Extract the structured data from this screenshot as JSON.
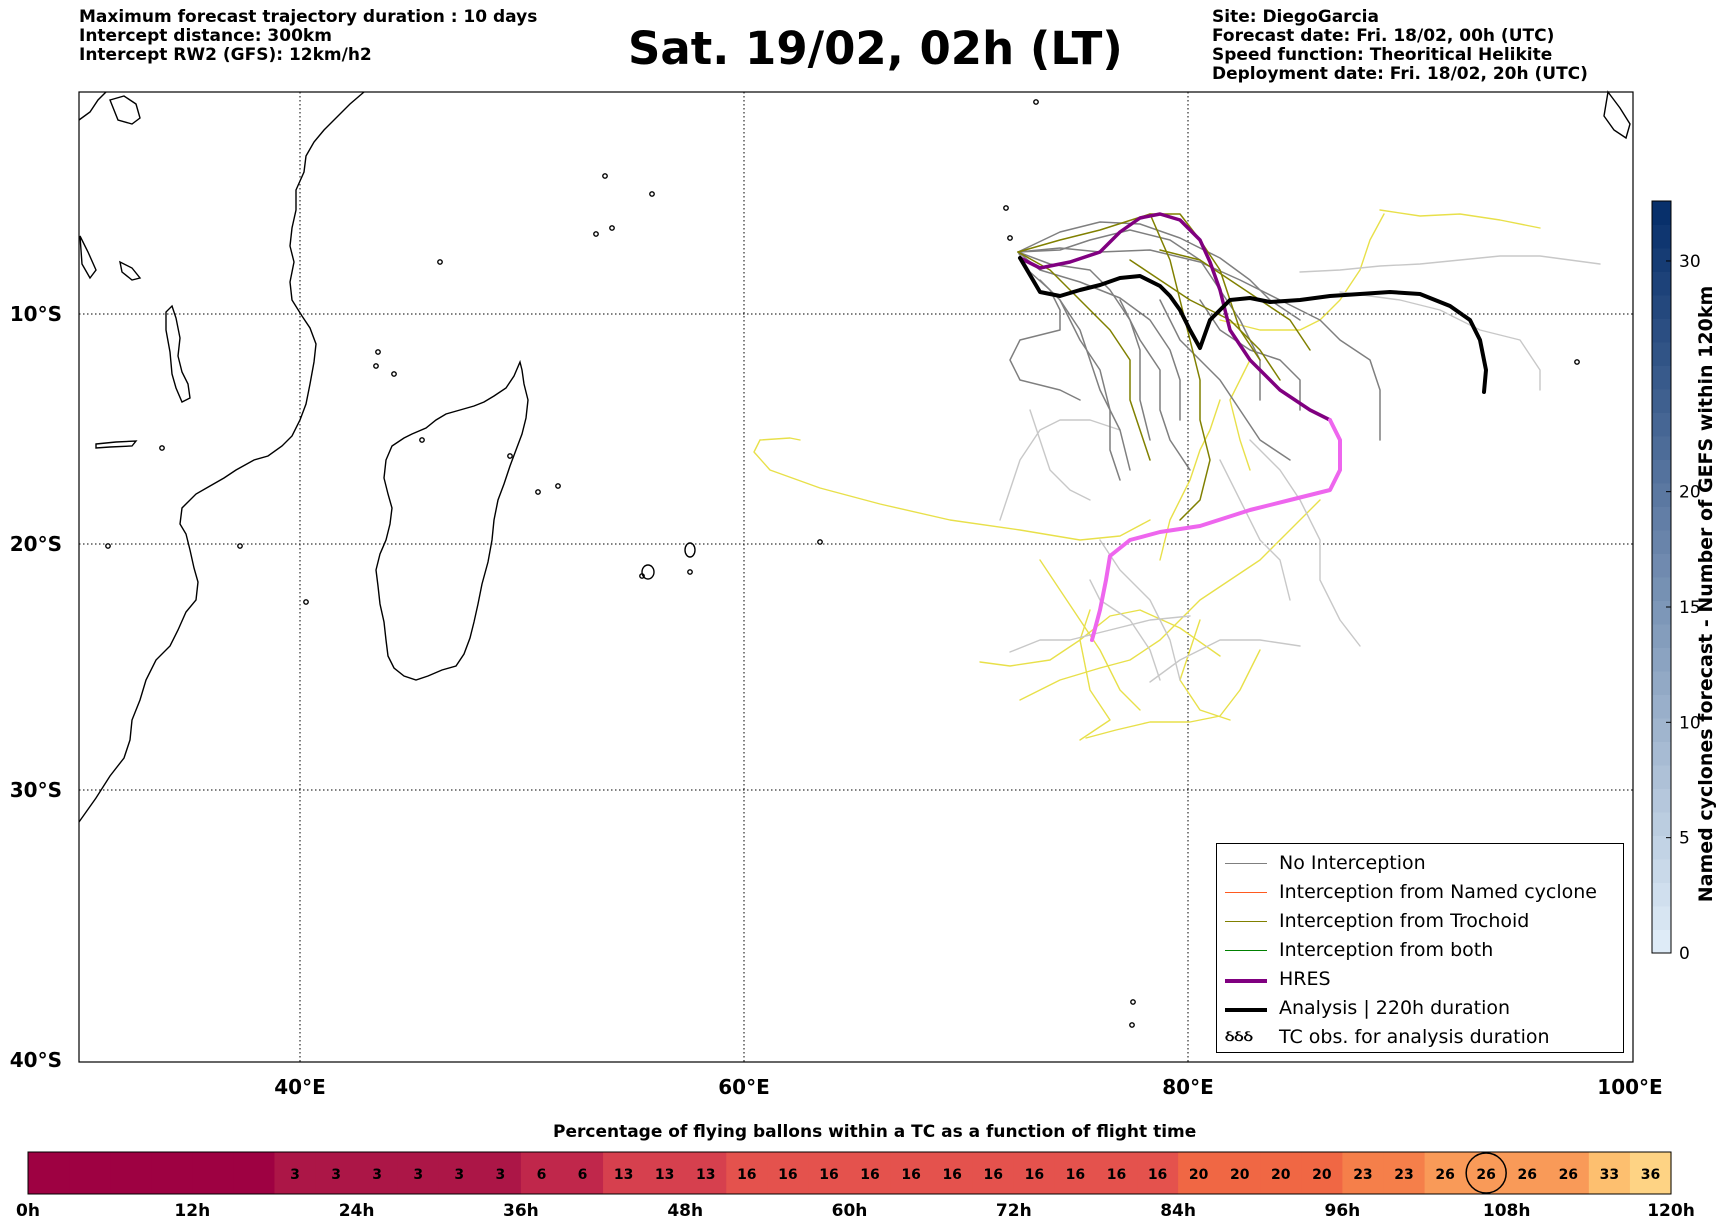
{
  "header_left": [
    "Maximum forecast trajectory duration : 10 days",
    "Intercept distance: 300km",
    "Intercept RW2 (GFS):  12km/h2"
  ],
  "title": "Sat. 19/02, 02h (LT)",
  "header_right": [
    "Site: DiegoGarcia",
    "Forecast date: Fri. 18/02, 00h (UTC)",
    "Speed function: Theoritical Helikite",
    "Deployment date: Fri. 18/02, 20h (UTC)"
  ],
  "map": {
    "lat_labels": [
      "10°S",
      "20°S",
      "30°S",
      "40°S"
    ],
    "lon_labels": [
      "40°E",
      "60°E",
      "80°E",
      "100°E"
    ]
  },
  "legend": [
    {
      "label": "No Interception",
      "color": "#7f7f7f"
    },
    {
      "label": "Interception from Named cyclone",
      "color": "#ff5a1f"
    },
    {
      "label": "Interception from Trochoid",
      "color": "#808000"
    },
    {
      "label": "Interception from both",
      "color": "#008000"
    },
    {
      "label": "HRES",
      "color": "#800080"
    },
    {
      "label": "Analysis | 220h duration",
      "color": "#000000"
    },
    {
      "label": "TC obs. for analysis duration",
      "symbol": "ઠઠઠ"
    }
  ],
  "track_colors": {
    "no_interception": "#7f7f7f",
    "light": "#c8c8c8",
    "yellow": "#e8e04a",
    "trochoid": "#808000",
    "hres": "#800080",
    "analysis": "#000000",
    "analysis_tc": "#ee66ee"
  },
  "colorbar": {
    "label": "Named cyclones forecast - Number of GEFS within 120km",
    "ticks": [
      "0",
      "5",
      "10",
      "15",
      "20",
      "30"
    ],
    "colors": [
      "#deebf7",
      "#08306b"
    ]
  },
  "pct_bar": {
    "title": "Percentage of flying ballons within a TC as a function of flight time",
    "hour_labels": [
      "0h",
      "12h",
      "24h",
      "36h",
      "48h",
      "60h",
      "72h",
      "84h",
      "96h",
      "108h",
      "120h"
    ],
    "values": [
      "",
      "",
      "",
      "",
      "",
      "",
      "3",
      "3",
      "3",
      "3",
      "3",
      "3",
      "6",
      "6",
      "13",
      "13",
      "13",
      "16",
      "16",
      "16",
      "16",
      "16",
      "16",
      "16",
      "16",
      "16",
      "16",
      "16",
      "20",
      "20",
      "20",
      "20",
      "23",
      "23",
      "26",
      "26",
      "26",
      "26",
      "33",
      "36"
    ],
    "highlighted_index": 35
  }
}
